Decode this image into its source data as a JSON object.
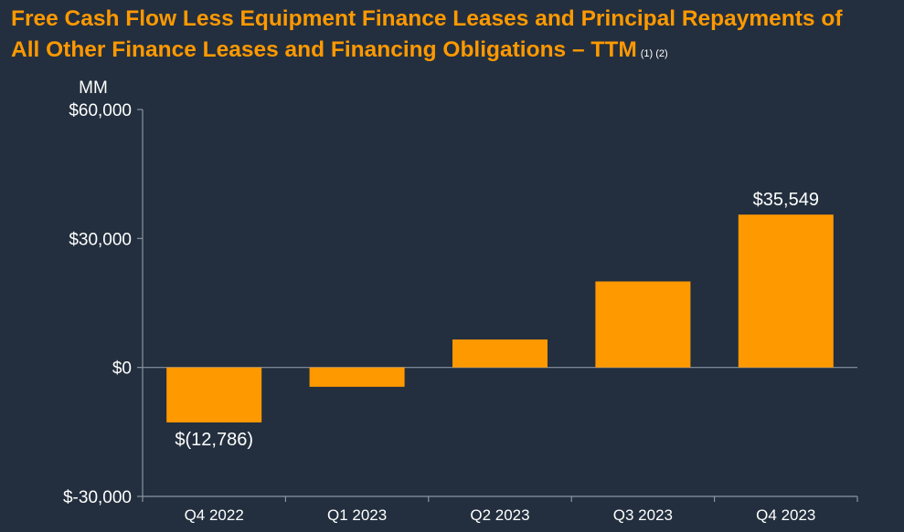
{
  "title": {
    "line1": "Free Cash Flow Less Equipment Finance Leases and Principal Repayments of",
    "line2": "All Other Finance Leases and Financing Obligations – TTM",
    "footnotes": "(1) (2)"
  },
  "colors": {
    "background": "#232f3e",
    "bar": "#ff9900",
    "title": "#ff9900",
    "text": "#ffffff",
    "axis": "#8a94a3"
  },
  "chart_data": {
    "type": "bar",
    "title": "Free Cash Flow Less Equipment Finance Leases and Principal Repayments of All Other Finance Leases and Financing Obligations – TTM",
    "unit_label": "MM",
    "xlabel": "",
    "ylabel": "MM",
    "categories": [
      "Q4 2022",
      "Q1 2023",
      "Q2 2023",
      "Q3 2023",
      "Q4 2023"
    ],
    "values": [
      -12786,
      -4500,
      6500,
      20000,
      35549
    ],
    "ylim": [
      -30000,
      60000
    ],
    "yticks": [
      -30000,
      0,
      30000,
      60000
    ],
    "ytick_labels": [
      "$-30,000",
      "$0",
      "$30,000",
      "$60,000"
    ],
    "data_labels": [
      {
        "index": 0,
        "text": "$(12,786)"
      },
      {
        "index": 4,
        "text": "$35,549"
      }
    ],
    "grid": false,
    "legend": "none"
  }
}
